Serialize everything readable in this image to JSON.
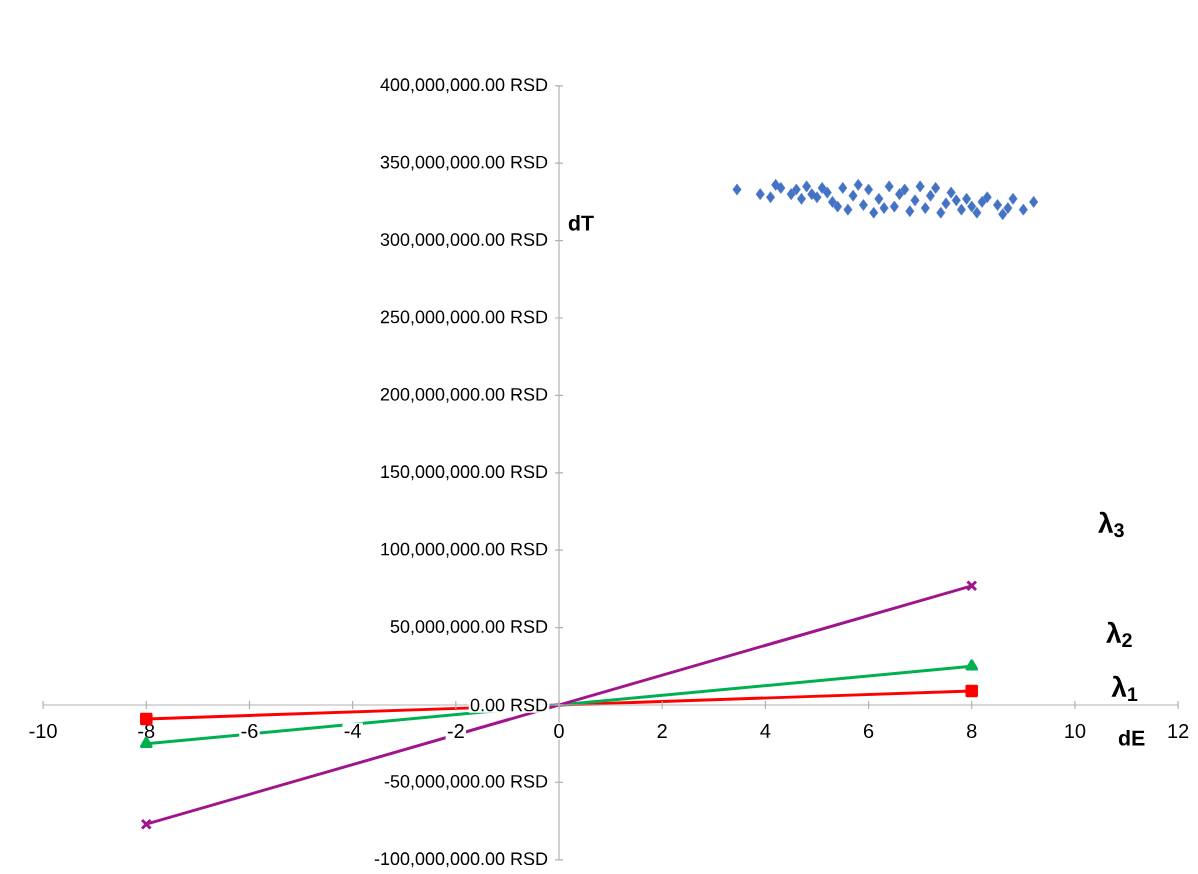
{
  "chart_data": {
    "type": "scatter",
    "xlabel": "dE",
    "ylabel": "dT",
    "xlim": [
      -10,
      12
    ],
    "ylim": [
      -100000000,
      400000000
    ],
    "xticks": [
      -10,
      -8,
      -6,
      -4,
      -2,
      0,
      2,
      4,
      6,
      8,
      10,
      12
    ],
    "yticks": [
      {
        "value": -100000000,
        "label": "-100,000,000.00 RSD"
      },
      {
        "value": -50000000,
        "label": "-50,000,000.00 RSD"
      },
      {
        "value": 0,
        "label": "0.00 RSD"
      },
      {
        "value": 50000000,
        "label": "50,000,000.00 RSD"
      },
      {
        "value": 100000000,
        "label": "100,000,000.00 RSD"
      },
      {
        "value": 150000000,
        "label": "150,000,000.00 RSD"
      },
      {
        "value": 200000000,
        "label": "200,000,000.00 RSD"
      },
      {
        "value": 250000000,
        "label": "250,000,000.00 RSD"
      },
      {
        "value": 300000000,
        "label": "300,000,000.00 RSD"
      },
      {
        "value": 350000000,
        "label": "350,000,000.00 RSD"
      },
      {
        "value": 400000000,
        "label": "400,000,000.00 RSD"
      }
    ],
    "grid": false,
    "series": [
      {
        "marker": "diamond",
        "color": "#4472c4",
        "x": [
          3.45,
          3.9,
          4.1,
          4.2,
          4.3,
          4.5,
          4.6,
          4.7,
          4.8,
          4.9,
          5.0,
          5.1,
          5.2,
          5.3,
          5.4,
          5.5,
          5.6,
          5.7,
          5.8,
          5.9,
          6.0,
          6.1,
          6.2,
          6.3,
          6.4,
          6.5,
          6.6,
          6.7,
          6.8,
          6.9,
          7.0,
          7.1,
          7.2,
          7.3,
          7.4,
          7.5,
          7.6,
          7.7,
          7.8,
          7.9,
          8.0,
          8.1,
          8.2,
          8.3,
          8.5,
          8.6,
          8.7,
          8.8,
          9.0,
          9.2
        ],
        "values": [
          333000000,
          330000000,
          328000000,
          336000000,
          334000000,
          330000000,
          333000000,
          327000000,
          335000000,
          330000000,
          328000000,
          334000000,
          331000000,
          325000000,
          322000000,
          334000000,
          320000000,
          329000000,
          336000000,
          323000000,
          333000000,
          318000000,
          327000000,
          321000000,
          335000000,
          322000000,
          330000000,
          333000000,
          319000000,
          326000000,
          335000000,
          321000000,
          329000000,
          334000000,
          318000000,
          324000000,
          331000000,
          326000000,
          320000000,
          327000000,
          322000000,
          318000000,
          325000000,
          328000000,
          323000000,
          317000000,
          321000000,
          327000000,
          320000000,
          325000000
        ]
      },
      {
        "type": "line",
        "name": "λ$_{1}$",
        "marker": "square",
        "color": "#ff0000",
        "x": [
          -8,
          8
        ],
        "values": [
          -9000000,
          9000000
        ]
      },
      {
        "type": "line",
        "name": "λ$_{2}$",
        "marker": "triangle",
        "color": "#00b050",
        "x": [
          -8,
          8
        ],
        "values": [
          -25000000,
          25000000
        ]
      },
      {
        "type": "line",
        "name": "λ$_{3}$",
        "marker": "cross",
        "color": "#a0158c",
        "x": [
          -8,
          8
        ],
        "values": [
          -77000000,
          77000000
        ]
      }
    ]
  }
}
